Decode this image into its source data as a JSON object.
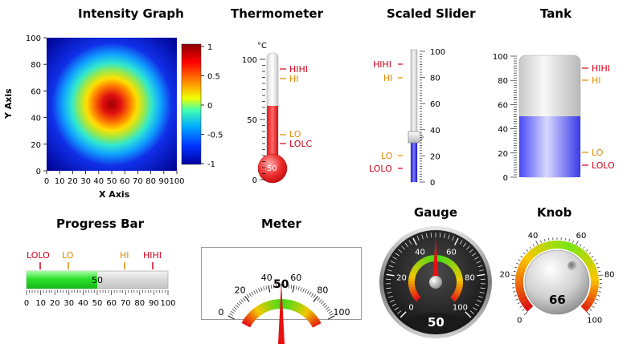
{
  "intensity_graph": {
    "title": "Intensity Graph",
    "xlabel": "X Axis",
    "ylabel": "Y Axis",
    "x_ticks": [
      "0",
      "10",
      "20",
      "30",
      "40",
      "50",
      "60",
      "70",
      "80",
      "90",
      "100"
    ],
    "y_ticks": [
      "0",
      "20",
      "40",
      "60",
      "80",
      "100"
    ],
    "colorbar_ticks": [
      "1",
      "0.5",
      "0",
      "-0.5",
      "-1"
    ]
  },
  "thermometer": {
    "title": "Thermometer",
    "unit": "°C",
    "ticks": [
      "100",
      "50",
      "0"
    ],
    "value": 50,
    "value_text": "50",
    "alarms": {
      "hihi": "HIHI",
      "hi": "HI",
      "lo": "LO",
      "lolo": "LOLC"
    }
  },
  "scaled_slider": {
    "title": "Scaled Slider",
    "ticks": [
      "100",
      "80",
      "60",
      "40",
      "20",
      "0"
    ],
    "value": 35,
    "alarms": {
      "hihi": "HIHI",
      "hi": "HI",
      "lo": "LO",
      "lolo": "LOLO"
    }
  },
  "tank": {
    "title": "Tank",
    "ticks": [
      "100",
      "80",
      "60",
      "40",
      "20",
      "0"
    ],
    "value": 50,
    "alarms": {
      "hihi": "HIHI",
      "hi": "HI",
      "lo": "LO",
      "lolo": "LOLO"
    }
  },
  "progress_bar": {
    "title": "Progress Bar",
    "value": 50,
    "value_text": "50",
    "ticks": [
      "0",
      "10",
      "20",
      "30",
      "40",
      "50",
      "60",
      "70",
      "80",
      "90",
      "100"
    ],
    "alarms": {
      "lolo": "LOLO",
      "lo": "LO",
      "hi": "HI",
      "hihi": "HIHI"
    }
  },
  "meter": {
    "title": "Meter",
    "ticks": [
      "0",
      "20",
      "40",
      "60",
      "80",
      "100"
    ],
    "value": 50,
    "value_text": "50"
  },
  "gauge": {
    "title": "Gauge",
    "ticks": [
      "0",
      "20",
      "40",
      "60",
      "80",
      "100"
    ],
    "value": 50,
    "value_text": "50"
  },
  "knob": {
    "title": "Knob",
    "ticks": [
      "0",
      "20",
      "40",
      "60",
      "80",
      "100"
    ],
    "value": 66,
    "value_text": "66"
  },
  "colors": {
    "alarm_high": "#d0021b",
    "alarm_warn": "#e08a00",
    "fill_red": "#e82020",
    "fill_blue": "#3a3af0",
    "fill_green": "#2ce02c"
  }
}
